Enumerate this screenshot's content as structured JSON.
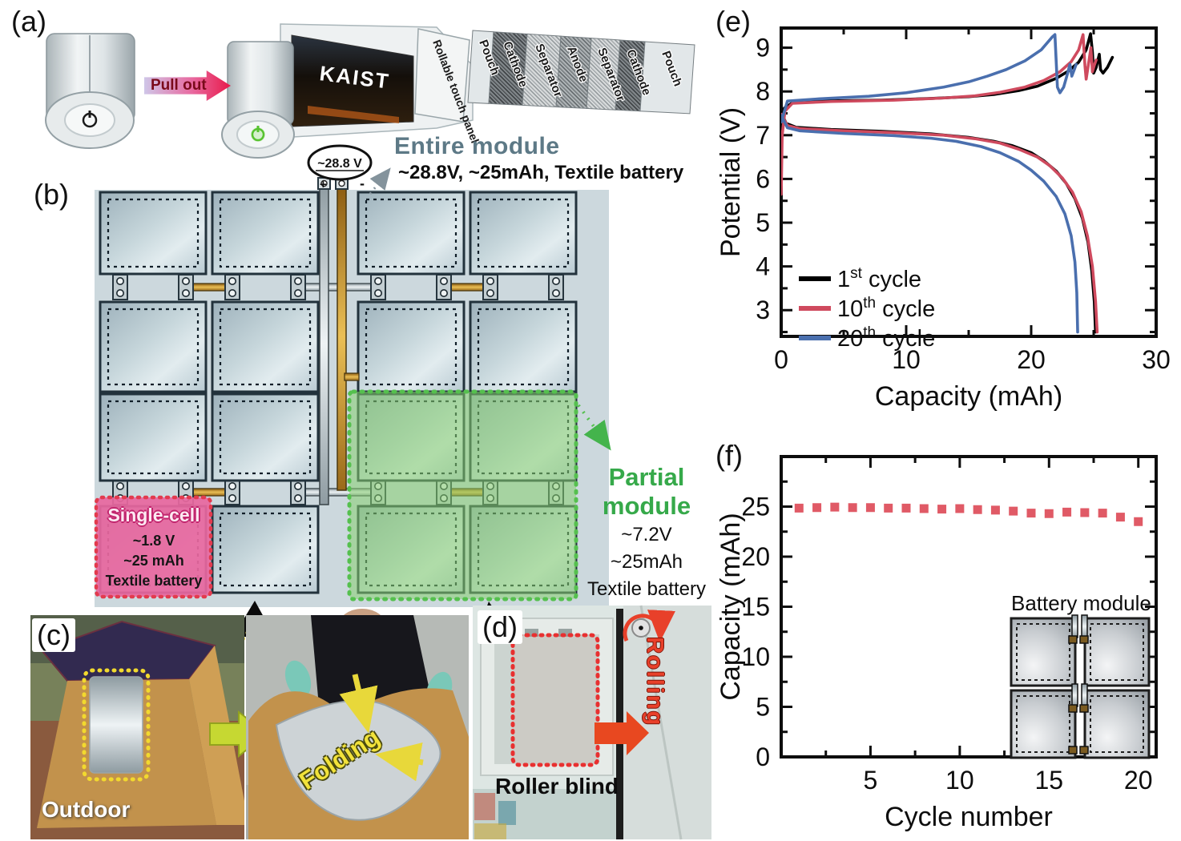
{
  "figure": {
    "panel_labels": {
      "a": "(a)",
      "b": "(b)",
      "c": "(c)",
      "d": "(d)",
      "e": "(e)",
      "f": "(f)"
    }
  },
  "panel_a": {
    "pull_out_label": "Pull out",
    "screen_brand": "KAIST",
    "layer_labels": [
      "Rollable touch panel",
      "Pouch",
      "Cathode",
      "Separator",
      "Anode",
      "Separator",
      "Cathode",
      "Pouch"
    ]
  },
  "panel_b": {
    "voltmeter_reading": "~28.8 V",
    "terminal_plus": "+",
    "terminal_minus": "-",
    "entire_module": {
      "title": "Entire module",
      "specs": "~28.8V, ~25mAh, Textile battery"
    },
    "single_cell": {
      "title": "Single-cell",
      "specs": [
        "~1.8 V",
        "~25 mAh",
        "Textile battery"
      ]
    },
    "partial_module": {
      "title_line1": "Partial",
      "title_line2": "module",
      "specs": [
        "~7.2V",
        "~25mAh",
        "Textile battery"
      ]
    }
  },
  "panel_c": {
    "outdoor_label": "Outdoor",
    "folding_label": "Folding"
  },
  "panel_d": {
    "rolling_label": "Rolling",
    "caption": "Roller blind"
  },
  "panel_f_inset": {
    "label": "Battery module"
  },
  "colors": {
    "entire_module_title": "#5d7986",
    "partial_green": "#36a94a",
    "single_pink_bg": "#e7679f",
    "dotted_red": "#e23b4e",
    "cycle1": "#000000",
    "cycle10": "#cf4a5e",
    "cycle20": "#4a6fae",
    "capacity_marker": "#e05a66"
  },
  "chart_data": [
    {
      "id": "chart-e",
      "type": "line",
      "xlabel": "Capacity (mAh)",
      "ylabel": "Potential (V)",
      "xlim": [
        0,
        30
      ],
      "ylim": [
        2.4,
        9.45
      ],
      "xticks": [
        0,
        10,
        20,
        30
      ],
      "xminor": [
        5,
        15,
        25
      ],
      "yticks": [
        3,
        4,
        5,
        6,
        7,
        8,
        9
      ],
      "yminor": [
        2.5,
        3.5,
        4.5,
        5.5,
        6.5,
        7.5,
        8.5,
        9.0
      ],
      "grid": false,
      "legend_position": "lower left",
      "legend": [
        {
          "num": "1",
          "sup": "st",
          "rest": " cycle",
          "color": "#000000"
        },
        {
          "num": "10",
          "sup": "th",
          "rest": " cycle",
          "color": "#cf4a5e"
        },
        {
          "num": "20",
          "sup": "th",
          "rest": " cycle",
          "color": "#4a6fae"
        }
      ],
      "series": [
        {
          "name": "1st cycle charge",
          "color": "#000000",
          "points": [
            [
              0,
              7.28
            ],
            [
              0.25,
              7.62
            ],
            [
              0.9,
              7.74
            ],
            [
              3,
              7.78
            ],
            [
              8,
              7.8
            ],
            [
              12,
              7.84
            ],
            [
              15,
              7.88
            ],
            [
              17,
              7.93
            ],
            [
              19,
              8.02
            ],
            [
              20.5,
              8.12
            ],
            [
              22,
              8.3
            ],
            [
              23,
              8.47
            ],
            [
              23.8,
              8.67
            ],
            [
              24.4,
              8.95
            ],
            [
              24.75,
              9.32
            ],
            [
              24.9,
              8.9
            ],
            [
              25.0,
              8.42
            ],
            [
              25.2,
              8.55
            ],
            [
              25.45,
              8.85
            ],
            [
              25.55,
              8.5
            ],
            [
              25.75,
              8.42
            ],
            [
              26.1,
              8.55
            ],
            [
              26.5,
              8.78
            ]
          ]
        },
        {
          "name": "1st cycle discharge",
          "color": "#000000",
          "points": [
            [
              0,
              7.52
            ],
            [
              0.4,
              7.27
            ],
            [
              1.2,
              7.18
            ],
            [
              4,
              7.13
            ],
            [
              8,
              7.09
            ],
            [
              12,
              7.03
            ],
            [
              15,
              6.95
            ],
            [
              17,
              6.86
            ],
            [
              18.5,
              6.76
            ],
            [
              20,
              6.6
            ],
            [
              21,
              6.42
            ],
            [
              22,
              6.18
            ],
            [
              22.8,
              5.9
            ],
            [
              23.5,
              5.55
            ],
            [
              24.1,
              5.1
            ],
            [
              24.55,
              4.55
            ],
            [
              24.85,
              3.9
            ],
            [
              25.05,
              3.2
            ],
            [
              25.15,
              2.5
            ]
          ]
        },
        {
          "name": "10th cycle charge",
          "color": "#cf4a5e",
          "points": [
            [
              0,
              5.65
            ],
            [
              0.08,
              7.0
            ],
            [
              0.3,
              7.55
            ],
            [
              0.9,
              7.73
            ],
            [
              4,
              7.77
            ],
            [
              9,
              7.8
            ],
            [
              13,
              7.85
            ],
            [
              15.5,
              7.9
            ],
            [
              17.5,
              7.98
            ],
            [
              19.5,
              8.1
            ],
            [
              21,
              8.25
            ],
            [
              22.3,
              8.45
            ],
            [
              23.2,
              8.68
            ],
            [
              23.8,
              8.95
            ],
            [
              24.15,
              9.3
            ],
            [
              24.3,
              8.6
            ],
            [
              24.4,
              8.28
            ],
            [
              24.65,
              8.75
            ],
            [
              24.78,
              9.0
            ],
            [
              24.9,
              8.45
            ],
            [
              25.05,
              8.6
            ],
            [
              25.2,
              8.72
            ]
          ]
        },
        {
          "name": "10th cycle discharge",
          "color": "#cf4a5e",
          "points": [
            [
              0,
              7.48
            ],
            [
              0.5,
              7.22
            ],
            [
              1.5,
              7.15
            ],
            [
              5,
              7.1
            ],
            [
              9,
              7.06
            ],
            [
              13,
              7.0
            ],
            [
              15.5,
              6.92
            ],
            [
              17.5,
              6.82
            ],
            [
              19,
              6.68
            ],
            [
              20.5,
              6.5
            ],
            [
              21.5,
              6.3
            ],
            [
              22.5,
              6.02
            ],
            [
              23.3,
              5.7
            ],
            [
              24,
              5.25
            ],
            [
              24.5,
              4.7
            ],
            [
              24.9,
              4.0
            ],
            [
              25.15,
              3.2
            ],
            [
              25.28,
              2.5
            ]
          ]
        },
        {
          "name": "20th cycle charge",
          "color": "#4a6fae",
          "points": [
            [
              0,
              7.3
            ],
            [
              0.5,
              7.78
            ],
            [
              3,
              7.83
            ],
            [
              7,
              7.89
            ],
            [
              10,
              7.97
            ],
            [
              13,
              8.1
            ],
            [
              15,
              8.22
            ],
            [
              16.5,
              8.35
            ],
            [
              18,
              8.5
            ],
            [
              19.5,
              8.7
            ],
            [
              20.8,
              8.95
            ],
            [
              21.7,
              9.25
            ],
            [
              21.9,
              9.3
            ],
            [
              22.0,
              8.7
            ],
            [
              22.1,
              8.1
            ],
            [
              22.3,
              7.97
            ],
            [
              22.6,
              8.1
            ],
            [
              22.9,
              8.4
            ],
            [
              23.1,
              8.62
            ],
            [
              23.25,
              8.35
            ],
            [
              23.45,
              8.5
            ],
            [
              23.6,
              8.62
            ]
          ]
        },
        {
          "name": "20th cycle discharge",
          "color": "#4a6fae",
          "points": [
            [
              0,
              7.45
            ],
            [
              0.5,
              7.17
            ],
            [
              1.5,
              7.1
            ],
            [
              5,
              7.04
            ],
            [
              9,
              6.99
            ],
            [
              12,
              6.93
            ],
            [
              14,
              6.86
            ],
            [
              16,
              6.74
            ],
            [
              17.5,
              6.6
            ],
            [
              19,
              6.4
            ],
            [
              20,
              6.2
            ],
            [
              21,
              5.95
            ],
            [
              22,
              5.6
            ],
            [
              22.7,
              5.2
            ],
            [
              23.2,
              4.7
            ],
            [
              23.5,
              4.1
            ],
            [
              23.65,
              3.4
            ],
            [
              23.72,
              2.5
            ]
          ]
        }
      ]
    },
    {
      "id": "chart-f",
      "type": "scatter",
      "xlabel": "Cycle number",
      "ylabel": "Capacity (mAh)",
      "xlim": [
        0,
        21
      ],
      "ylim": [
        0,
        30
      ],
      "xticks": [
        5,
        10,
        15,
        20
      ],
      "xminor": [
        2.5,
        7.5,
        12.5,
        17.5
      ],
      "yticks": [
        0,
        5,
        10,
        15,
        20,
        25
      ],
      "yminor": [
        2.5,
        7.5,
        12.5,
        17.5,
        22.5,
        27.5
      ],
      "grid": false,
      "marker": {
        "shape": "square",
        "size": 11,
        "color": "#e05a66"
      },
      "x": [
        1,
        2,
        3,
        4,
        5,
        6,
        7,
        8,
        9,
        10,
        11,
        12,
        13,
        14,
        15,
        16,
        17,
        18,
        19,
        20
      ],
      "y": [
        24.85,
        24.9,
        24.95,
        24.9,
        24.9,
        24.85,
        24.85,
        24.8,
        24.75,
        24.8,
        24.7,
        24.65,
        24.55,
        24.35,
        24.3,
        24.45,
        24.4,
        24.35,
        23.95,
        23.5
      ],
      "inset_label": "Battery module"
    }
  ]
}
